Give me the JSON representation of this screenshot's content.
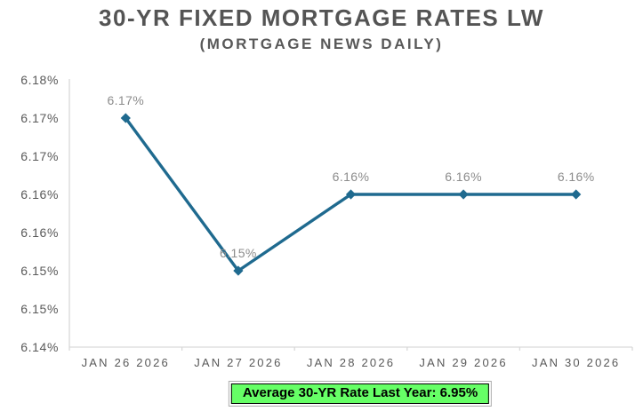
{
  "header": {
    "title": "30-YR FIXED MORTGAGE RATES LW",
    "subtitle": "(MORTGAGE NEWS DAILY)"
  },
  "chart_data": {
    "type": "line",
    "title": "30-YR FIXED MORTGAGE RATES LW",
    "subtitle": "(MORTGAGE NEWS DAILY)",
    "categories": [
      "JAN 26 2026",
      "JAN 27 2026",
      "JAN 28 2026",
      "JAN 29 2026",
      "JAN 30 2026"
    ],
    "values": [
      6.17,
      6.15,
      6.16,
      6.16,
      6.16
    ],
    "point_labels": [
      "6.17%",
      "6.15%",
      "6.16%",
      "6.16%",
      "6.16%"
    ],
    "unit": "%",
    "y_axis": {
      "min": 6.14,
      "max": 6.175,
      "tick_step": 0.005,
      "tick_labels": [
        "6.18%",
        "6.17%",
        "6.17%",
        "6.16%",
        "6.16%",
        "6.15%",
        "6.15%",
        "6.14%"
      ]
    },
    "grid": false,
    "legend": "none",
    "marker_shape": "diamond",
    "colors": {
      "line": "#1F6A8F",
      "marker": "#1F6A8F",
      "point_label": "#8C8C8C",
      "axis_text": "#595959",
      "axis_line": "#D9D9D9"
    }
  },
  "footer": {
    "badge_label": "Average 30-YR Rate Last Year: 6.95%",
    "badge_bg": "#66FF66",
    "badge_text_color": "#000000",
    "badge_outer_border": "#ADADAD",
    "badge_inner_border": "#000000"
  }
}
